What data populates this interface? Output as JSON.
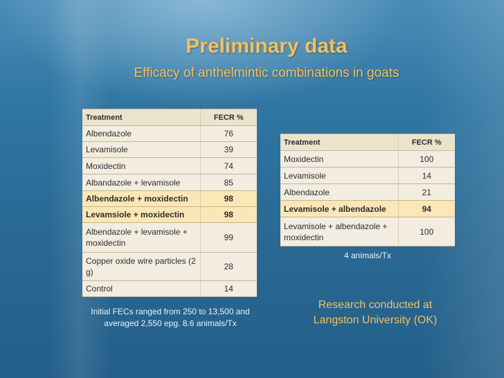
{
  "slide": {
    "title": "Preliminary data",
    "subtitle": "Efficacy of anthelmintic combinations in goats"
  },
  "table_left": {
    "headers": [
      "Treatment",
      "FECR %"
    ],
    "rows": [
      {
        "treatment": "Albendazole",
        "fecr": "76"
      },
      {
        "treatment": "Levamisole",
        "fecr": "39"
      },
      {
        "treatment": "Moxidectin",
        "fecr": "74"
      },
      {
        "treatment": "Albandazole + levamisole",
        "fecr": "85"
      },
      {
        "treatment": "Albendazole + moxidectin",
        "fecr": "98"
      },
      {
        "treatment": "Levamsiole + moxidectin",
        "fecr": "98"
      },
      {
        "treatment": "Albendazole + levamisole + moxidectin",
        "fecr": "99"
      },
      {
        "treatment": "Copper oxide wire particles (2 g)",
        "fecr": "28"
      },
      {
        "treatment": "Control",
        "fecr": "14"
      }
    ],
    "note": "Initial FECs ranged from 250 to 13,500 and averaged 2,550 epg. 8.6 animals/Tx"
  },
  "table_right": {
    "headers": [
      "Treatment",
      "FECR %"
    ],
    "rows": [
      {
        "treatment": "Moxidectin",
        "fecr": "100"
      },
      {
        "treatment": "Levamisole",
        "fecr": "14"
      },
      {
        "treatment": "Albendazole",
        "fecr": "21"
      },
      {
        "treatment": "Levamisole + albendazole",
        "fecr": "94"
      },
      {
        "treatment": "Levamisole + albendazole + moxidectin",
        "fecr": "100"
      }
    ],
    "note": "4 animals/Tx",
    "research_note": "Research conducted at Langston University (OK)"
  },
  "colors": {
    "title": "#f6bf5c",
    "table_fill": "#f2ece1",
    "highlight_fill": "#fbe6b5",
    "background": "#2a6d96"
  }
}
